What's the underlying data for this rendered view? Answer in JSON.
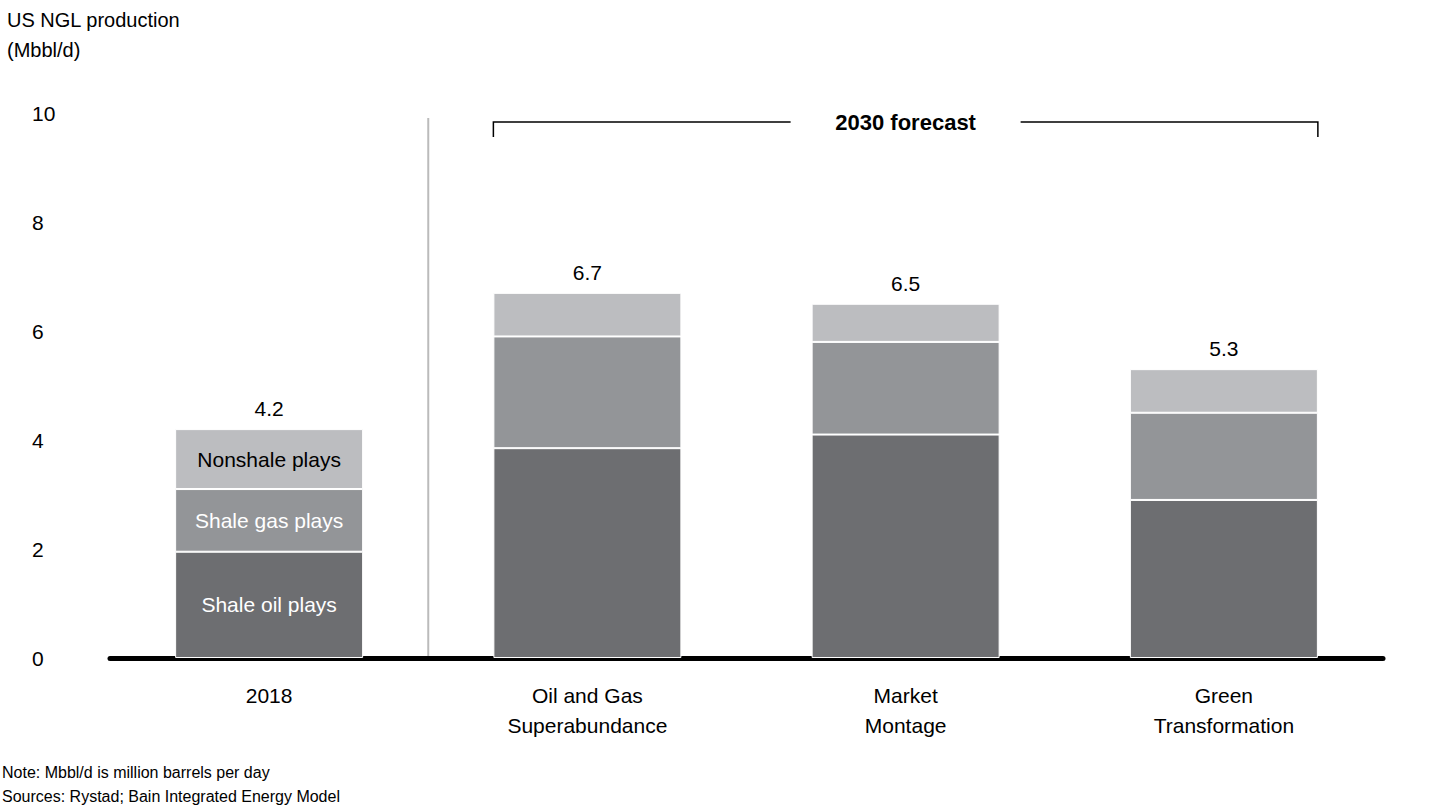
{
  "chart_data": {
    "type": "bar",
    "stacked": true,
    "orientation": "vertical",
    "y_label": "US NGL production\n(Mbbl/d)",
    "annotation": "2030 forecast",
    "notes": [
      "Note: Mbbl/d is million barrels per day",
      "Sources: Rystad; Bain Integrated Energy Model"
    ],
    "categories": [
      "2018",
      "Oil and Gas Superabundance",
      "Market Montage",
      "Green Transformation"
    ],
    "series": [
      {
        "name": "Shale oil plays",
        "color": "#6d6e71",
        "values": [
          1.95,
          3.85,
          4.1,
          2.9
        ]
      },
      {
        "name": "Shale gas plays",
        "color": "#939598",
        "values": [
          1.15,
          2.05,
          1.7,
          1.6
        ]
      },
      {
        "name": "Nonshale plays",
        "color": "#bcbdc0",
        "values": [
          1.1,
          0.8,
          0.7,
          0.8
        ]
      }
    ],
    "totals": [
      4.2,
      6.7,
      6.5,
      5.3
    ],
    "ylim": [
      0,
      10
    ],
    "yticks": [
      0,
      2,
      4,
      6,
      8,
      10
    ],
    "grid": false
  }
}
